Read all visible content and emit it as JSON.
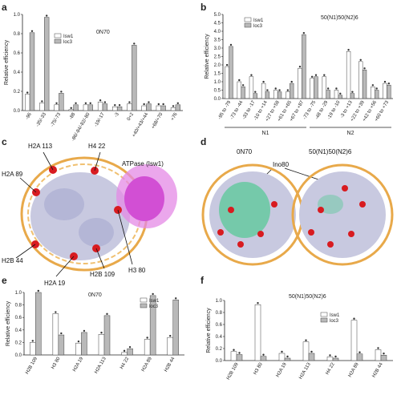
{
  "panels": {
    "a": "a",
    "b": "b",
    "c": "c",
    "d": "d",
    "e": "e",
    "f": "f"
  },
  "legend": {
    "s1": "Isw1",
    "s2": "loc3"
  },
  "chart_data": [
    {
      "id": "a",
      "type": "bar",
      "title": "0N70",
      "ylabel": "Relative efficiency",
      "ylim": [
        0,
        1.0
      ],
      "yticks": [
        "0.0",
        "0.2",
        "0.4",
        "0.6",
        "0.8",
        "1.0"
      ],
      "categories": [
        "-96",
        "-35/-33",
        "-75/-73",
        "-88",
        "-86/-84/-82/-80",
        "-19/-17",
        "-3",
        "0+2",
        "+40/+43/+44",
        "+68/+70",
        "+76"
      ],
      "series": [
        {
          "name": "Isw1",
          "values": [
            0.17,
            0.08,
            0.06,
            0.01,
            0.06,
            0.09,
            0.04,
            0.07,
            0.05,
            0.05,
            0.03
          ]
        },
        {
          "name": "loc3",
          "values": [
            0.81,
            0.97,
            0.18,
            0.06,
            0.06,
            0.07,
            0.04,
            0.68,
            0.07,
            0.05,
            0.06
          ]
        }
      ]
    },
    {
      "id": "b",
      "type": "bar",
      "title": "50(N1)50(N2)6",
      "ylabel": "Relative efficiency",
      "ylim": [
        0,
        5.0
      ],
      "yticks": [
        "0.0",
        "0.5",
        "1.0",
        "1.5",
        "2.0",
        "2.5",
        "3.0",
        "3.5",
        "4.0",
        "4.5",
        "5.0"
      ],
      "categories": [
        "-95 to -79",
        "-73 to -44",
        "-33 to -17",
        "-10 to +14",
        "+27 to +58",
        "+61 to +65",
        "+67 to +87",
        "-73 to -75",
        "-48 to -29",
        "-19 to -10",
        "-3 to +13",
        "+22 to +39",
        "+42 to +56",
        "+60 to +73"
      ],
      "groups": [
        {
          "name": "N1",
          "count": 7
        },
        {
          "name": "N2",
          "count": 7
        }
      ],
      "series": [
        {
          "name": "Isw1",
          "values": [
            1.9,
            1.0,
            1.3,
            0.9,
            0.5,
            0.4,
            1.8,
            1.2,
            1.3,
            0.5,
            2.8,
            2.2,
            0.7,
            0.9
          ]
        },
        {
          "name": "loc3",
          "values": [
            3.1,
            0.7,
            0.3,
            0.4,
            0.4,
            0.9,
            3.8,
            1.3,
            0.5,
            0.2,
            0.3,
            1.7,
            0.5,
            0.8
          ]
        }
      ]
    },
    {
      "id": "e",
      "type": "bar",
      "title": "0N70",
      "ylabel": "Relative efficiency",
      "ylim": [
        0,
        1.0
      ],
      "yticks": [
        "0.0",
        "0.2",
        "0.4",
        "0.6",
        "0.8",
        "1.0"
      ],
      "categories": [
        "H2B 109",
        "H3 80",
        "H2A 19",
        "H2A 113",
        "H4 22",
        "H2A 89",
        "H2B 44"
      ],
      "series": [
        {
          "name": "Isw1",
          "values": [
            0.2,
            0.66,
            0.19,
            0.33,
            0.04,
            0.25,
            0.28
          ]
        },
        {
          "name": "loc3",
          "values": [
            1.0,
            0.32,
            0.36,
            0.63,
            0.1,
            0.95,
            0.88
          ]
        }
      ]
    },
    {
      "id": "f",
      "type": "bar",
      "title": "50(N1)50(N2)6",
      "ylabel": "Relative efficiency",
      "ylim": [
        0,
        1.0
      ],
      "yticks": [
        "0.0",
        "0.2",
        "0.4",
        "0.6",
        "0.8",
        "1.0"
      ],
      "categories": [
        "H2B 109",
        "H3 80",
        "H2A 19",
        "H2A 113",
        "H4 22",
        "H2A 89",
        "H2B 44"
      ],
      "series": [
        {
          "name": "Isw1",
          "values": [
            0.15,
            0.93,
            0.12,
            0.31,
            0.06,
            0.67,
            0.18
          ]
        },
        {
          "name": "loc3",
          "values": [
            0.1,
            0.07,
            0.04,
            0.12,
            0.04,
            0.11,
            0.09
          ]
        }
      ]
    }
  ],
  "structures": {
    "c_labels": [
      "H2A 113",
      "H4 22",
      "H2A 89",
      "ATPase (Isw1)",
      "H3 80",
      "H2B 44",
      "H2B 109",
      "H2A 19"
    ],
    "d_left": "0N70",
    "d_right": "50(N1)50(N2)6",
    "d_ino": "Ino80"
  },
  "colors": {
    "isw1": "#ffffff",
    "loc3": "#b9b9b9",
    "protein": "#c8c9e0",
    "dna": "#e8a94a",
    "atpase": "#d24fd4",
    "ino": "#66c9a0",
    "marker": "#d81b20"
  }
}
